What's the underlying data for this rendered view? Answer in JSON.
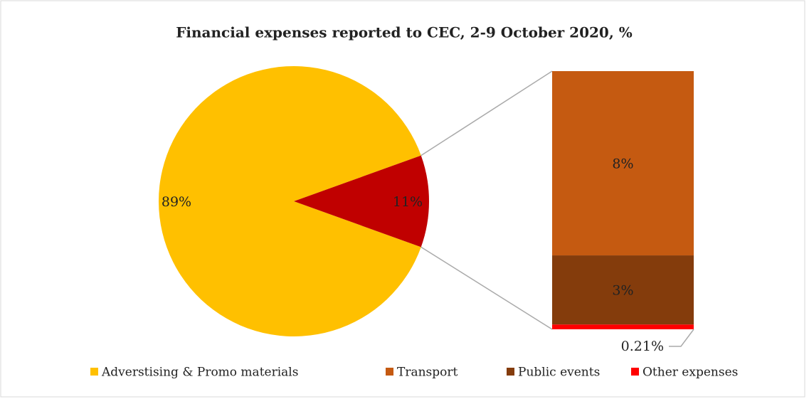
{
  "chart_data": {
    "type": "pie",
    "title": "Financial expenses reported to CEC, 2-9 October 2020, %",
    "categories": [
      "Adverstising & Promo materials",
      "Transport",
      "Public events",
      "Other expenses"
    ],
    "values": [
      89,
      8,
      3,
      0.21
    ],
    "value_labels": [
      "89%",
      "8%",
      "3%",
      "0.21%"
    ],
    "colors": [
      "#ffc000",
      "#c55a11",
      "#843c0c",
      "#ff0000"
    ],
    "combined": {
      "value": 11,
      "label": "11%",
      "color": "#c00000"
    },
    "legend": "bottom"
  }
}
